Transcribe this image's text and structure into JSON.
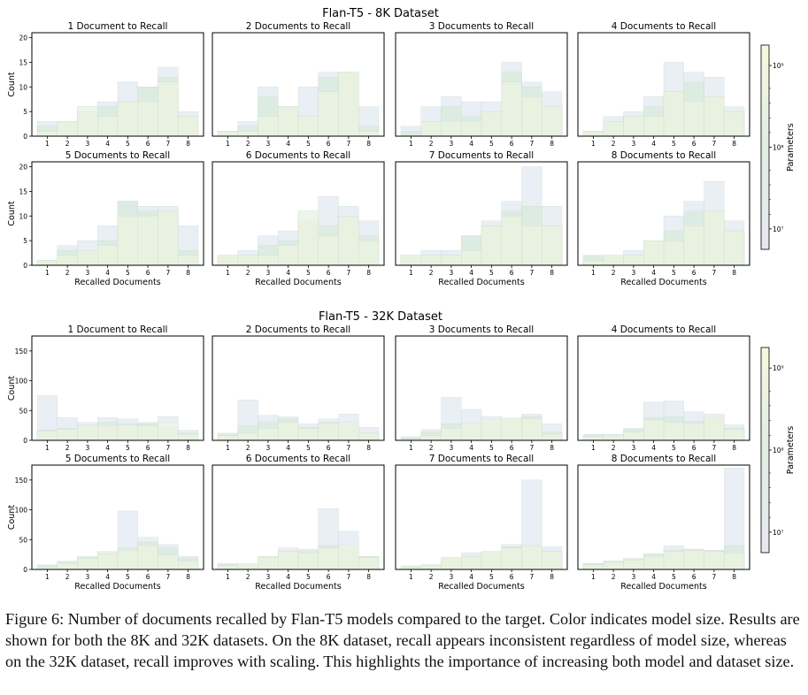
{
  "colors": {
    "small_model": "#dde6f0",
    "mid_model": "#d7ead9",
    "large_model": "#eff6e0",
    "frame": "#000000",
    "overlay": "#cfe6d4"
  },
  "caption": "Figure 6: Number of documents recalled by Flan-T5 models compared to the target. Color indicates model size. Results are shown for both the 8K and 32K datasets. On the 8K dataset, recall appears inconsistent regardless of model size, whereas on the 32K dataset, recall improves with scaling. This highlights the importance of increasing both model and dataset size.",
  "chart_data": [
    {
      "type": "bar",
      "title": "Flan-T5 - 8K Dataset",
      "xlabel": "Recalled Documents",
      "ylabel": "Count",
      "ylim": [
        0,
        21
      ],
      "yticks": [
        0,
        5,
        10,
        15,
        20
      ],
      "categories": [
        "1",
        "2",
        "3",
        "4",
        "5",
        "6",
        "7",
        "8"
      ],
      "colorbar": {
        "label": "Parameters",
        "ticks": [
          "10⁷",
          "10⁸",
          "10⁹"
        ],
        "scale": "log"
      },
      "panels": [
        {
          "title": "1 Document to Recall",
          "series": [
            {
              "values": [
                3,
                3,
                6,
                7,
                11,
                10,
                14,
                5
              ]
            },
            {
              "values": [
                2,
                3,
                5,
                6,
                7,
                10,
                12,
                4
              ]
            },
            {
              "values": [
                1,
                3,
                6,
                4,
                7,
                7,
                11,
                4
              ]
            }
          ]
        },
        {
          "title": "2 Documents to Recall",
          "series": [
            {
              "values": [
                1,
                3,
                10,
                6,
                10,
                13,
                13,
                6
              ]
            },
            {
              "values": [
                1,
                2,
                8,
                6,
                4,
                12,
                13,
                2
              ]
            },
            {
              "values": [
                1,
                1,
                4,
                6,
                4,
                9,
                13,
                1
              ]
            }
          ]
        },
        {
          "title": "3 Documents to Recall",
          "series": [
            {
              "values": [
                2,
                6,
                8,
                7,
                7,
                15,
                11,
                9
              ]
            },
            {
              "values": [
                1,
                3,
                6,
                4,
                5,
                13,
                10,
                6
              ]
            },
            {
              "values": [
                0,
                3,
                3,
                3,
                5,
                11,
                8,
                6
              ]
            }
          ]
        },
        {
          "title": "4 Documents to Recall",
          "series": [
            {
              "values": [
                1,
                4,
                5,
                8,
                15,
                13,
                12,
                6
              ]
            },
            {
              "values": [
                1,
                3,
                4,
                6,
                9,
                11,
                8,
                5
              ]
            },
            {
              "values": [
                1,
                3,
                4,
                4,
                9,
                7,
                8,
                5
              ]
            }
          ]
        },
        {
          "title": "5 Documents to Recall",
          "series": [
            {
              "values": [
                1,
                4,
                5,
                8,
                13,
                12,
                12,
                8
              ]
            },
            {
              "values": [
                1,
                3,
                3,
                5,
                13,
                11,
                11,
                3
              ]
            },
            {
              "values": [
                1,
                2,
                3,
                4,
                10,
                10,
                11,
                2
              ]
            }
          ]
        },
        {
          "title": "6 Documents to Recall",
          "series": [
            {
              "values": [
                2,
                3,
                6,
                7,
                11,
                14,
                12,
                9
              ]
            },
            {
              "values": [
                2,
                2,
                4,
                5,
                9,
                8,
                10,
                6
              ]
            },
            {
              "values": [
                2,
                2,
                2,
                4,
                11,
                6,
                10,
                5
              ]
            }
          ]
        },
        {
          "title": "7 Documents to Recall",
          "series": [
            {
              "values": [
                2,
                3,
                3,
                6,
                9,
                13,
                20,
                12
              ]
            },
            {
              "values": [
                2,
                2,
                2,
                6,
                8,
                11,
                12,
                8
              ]
            },
            {
              "values": [
                2,
                2,
                2,
                3,
                8,
                10,
                8,
                8
              ]
            }
          ]
        },
        {
          "title": "8 Documents to Recall",
          "series": [
            {
              "values": [
                2,
                2,
                3,
                5,
                10,
                13,
                17,
                9
              ]
            },
            {
              "values": [
                2,
                2,
                2,
                5,
                7,
                11,
                11,
                7
              ]
            },
            {
              "values": [
                1,
                2,
                2,
                5,
                5,
                8,
                11,
                7
              ]
            }
          ]
        }
      ]
    },
    {
      "type": "bar",
      "title": "Flan-T5 - 32K Dataset",
      "xlabel": "Recalled Documents",
      "ylabel": "Count",
      "ylim": [
        0,
        175
      ],
      "yticks": [
        0,
        50,
        100,
        150
      ],
      "categories": [
        "1",
        "2",
        "3",
        "4",
        "5",
        "6",
        "7",
        "8"
      ],
      "colorbar": {
        "label": "Parameters",
        "ticks": [
          "10⁷",
          "10⁸",
          "10⁹"
        ],
        "scale": "log"
      },
      "panels": [
        {
          "title": "1 Document to Recall",
          "series": [
            {
              "values": [
                75,
                38,
                30,
                38,
                36,
                30,
                40,
                17
              ]
            },
            {
              "values": [
                17,
                20,
                25,
                30,
                27,
                28,
                22,
                12
              ]
            },
            {
              "values": [
                15,
                18,
                26,
                25,
                26,
                24,
                30,
                10
              ]
            }
          ]
        },
        {
          "title": "2 Documents to Recall",
          "series": [
            {
              "values": [
                10,
                68,
                42,
                40,
                28,
                36,
                44,
                22
              ]
            },
            {
              "values": [
                12,
                24,
                30,
                36,
                22,
                30,
                28,
                12
              ]
            },
            {
              "values": [
                8,
                12,
                20,
                30,
                20,
                28,
                30,
                12
              ]
            }
          ]
        },
        {
          "title": "3 Documents to Recall",
          "series": [
            {
              "values": [
                6,
                18,
                72,
                52,
                40,
                36,
                44,
                28
              ]
            },
            {
              "values": [
                4,
                14,
                28,
                24,
                30,
                36,
                40,
                14
              ]
            },
            {
              "values": [
                2,
                8,
                20,
                28,
                34,
                38,
                36,
                10
              ]
            }
          ]
        },
        {
          "title": "4 Documents to Recall",
          "series": [
            {
              "values": [
                10,
                10,
                20,
                64,
                66,
                48,
                44,
                26
              ]
            },
            {
              "values": [
                8,
                8,
                18,
                38,
                40,
                32,
                38,
                20
              ]
            },
            {
              "values": [
                6,
                8,
                14,
                34,
                30,
                28,
                40,
                18
              ]
            }
          ]
        },
        {
          "title": "5 Documents to Recall",
          "series": [
            {
              "values": [
                8,
                14,
                20,
                24,
                98,
                54,
                42,
                22
              ]
            },
            {
              "values": [
                6,
                12,
                22,
                30,
                36,
                46,
                36,
                18
              ]
            },
            {
              "values": [
                4,
                10,
                18,
                26,
                32,
                40,
                24,
                14
              ]
            }
          ]
        },
        {
          "title": "6 Documents to Recall",
          "series": [
            {
              "values": [
                10,
                8,
                18,
                36,
                34,
                102,
                64,
                22
              ]
            },
            {
              "values": [
                8,
                8,
                22,
                30,
                30,
                40,
                36,
                22
              ]
            },
            {
              "values": [
                6,
                10,
                20,
                30,
                28,
                36,
                40,
                20
              ]
            }
          ]
        },
        {
          "title": "7 Documents to Recall",
          "series": [
            {
              "values": [
                4,
                6,
                18,
                28,
                30,
                42,
                150,
                38
              ]
            },
            {
              "values": [
                6,
                8,
                20,
                22,
                30,
                38,
                40,
                30
              ]
            },
            {
              "values": [
                4,
                6,
                20,
                22,
                30,
                36,
                40,
                30
              ]
            }
          ]
        },
        {
          "title": "8 Documents to Recall",
          "series": [
            {
              "values": [
                10,
                14,
                18,
                26,
                40,
                34,
                32,
                170
              ]
            },
            {
              "values": [
                10,
                14,
                18,
                26,
                32,
                34,
                32,
                40
              ]
            },
            {
              "values": [
                8,
                12,
                16,
                22,
                30,
                32,
                30,
                28
              ]
            }
          ]
        }
      ]
    }
  ]
}
